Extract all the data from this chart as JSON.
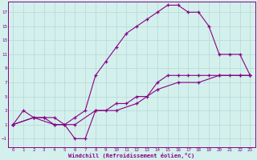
{
  "xlabel": "Windchill (Refroidissement éolien,°C)",
  "bg_color": "#d4f0ec",
  "grid_color": "#b8dcd8",
  "line_color": "#880088",
  "xlim": [
    -0.5,
    23.5
  ],
  "ylim": [
    -2.2,
    18.5
  ],
  "xticks": [
    0,
    1,
    2,
    3,
    4,
    5,
    6,
    7,
    8,
    9,
    10,
    11,
    12,
    13,
    14,
    15,
    16,
    17,
    18,
    19,
    20,
    21,
    22,
    23
  ],
  "yticks": [
    -1,
    1,
    3,
    5,
    7,
    9,
    11,
    13,
    15,
    17
  ],
  "line1_x": [
    0,
    1,
    2,
    3,
    4,
    5,
    6,
    7,
    8,
    9,
    10,
    11,
    12,
    13,
    14,
    15,
    16,
    17,
    18,
    19,
    20,
    21,
    22,
    23
  ],
  "line1_y": [
    1,
    3,
    2,
    2,
    2,
    1,
    2,
    3,
    8,
    10,
    12,
    14,
    15,
    16,
    17,
    18,
    18,
    17,
    17,
    15,
    11,
    11,
    11,
    8
  ],
  "line2_x": [
    0,
    2,
    3,
    4,
    5,
    6,
    7,
    8,
    9,
    10,
    11,
    12,
    13,
    14,
    15,
    16,
    17,
    18,
    19,
    20,
    21,
    22,
    23
  ],
  "line2_y": [
    1,
    2,
    2,
    1,
    1,
    -1,
    -1,
    3,
    3,
    4,
    4,
    5,
    5,
    7,
    8,
    8,
    8,
    8,
    8,
    8,
    8,
    8,
    8
  ],
  "line3_x": [
    0,
    2,
    4,
    6,
    8,
    10,
    12,
    14,
    16,
    18,
    20,
    22,
    23
  ],
  "line3_y": [
    1,
    2,
    1,
    1,
    3,
    3,
    4,
    6,
    7,
    7,
    8,
    8,
    8
  ]
}
